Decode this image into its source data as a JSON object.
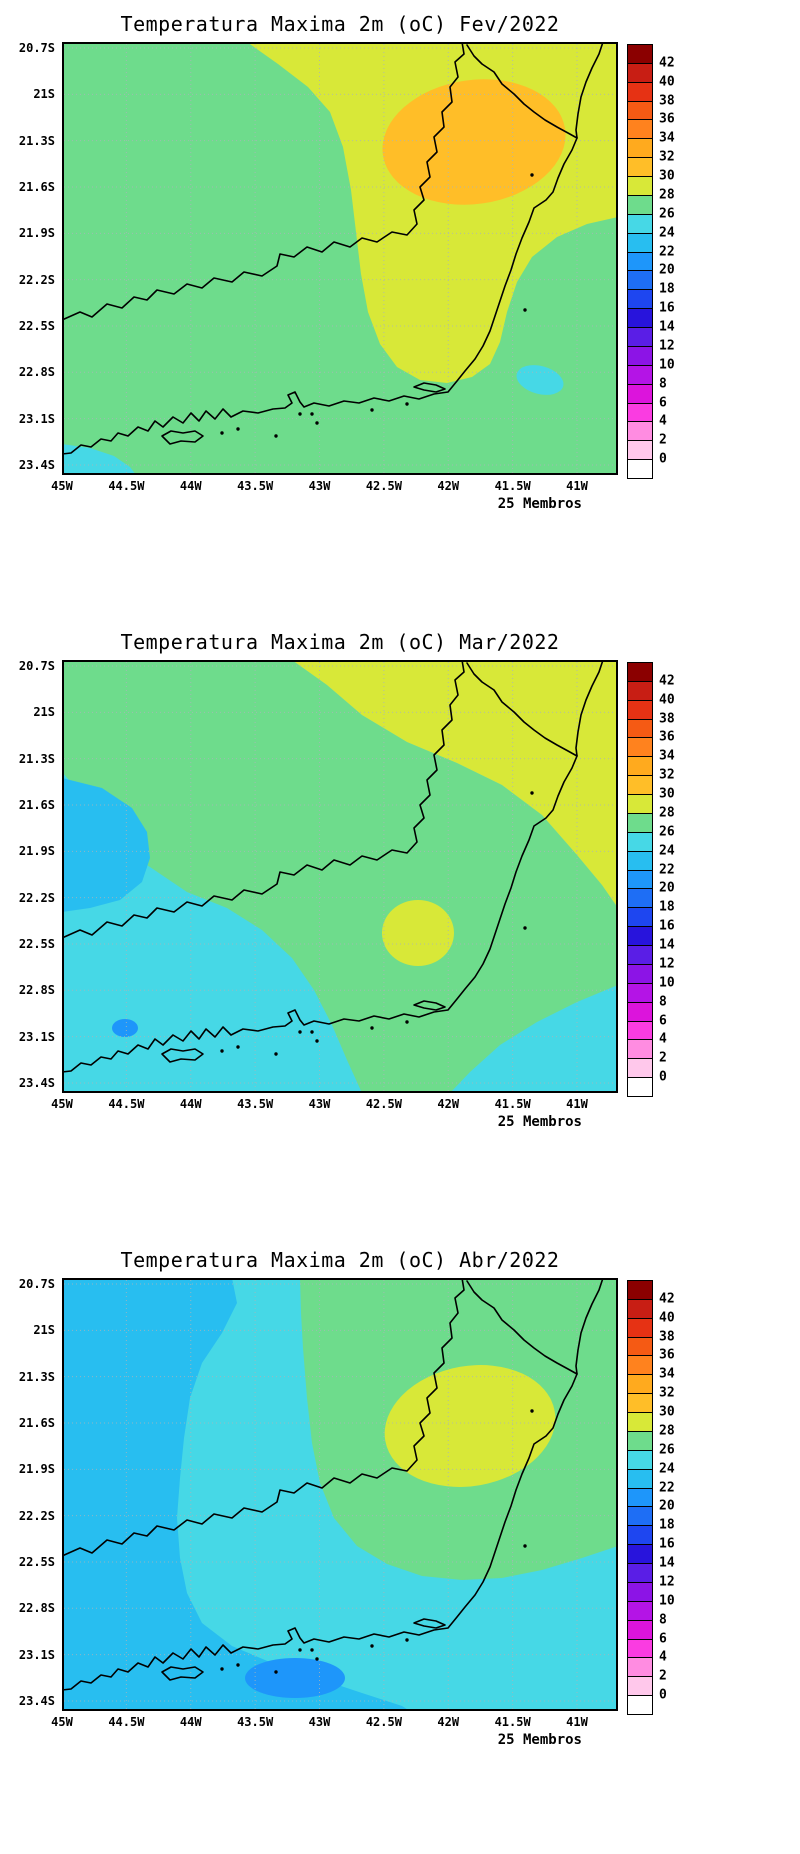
{
  "panels": [
    {
      "title": "Temperatura Maxima 2m (oC) Fev/2022",
      "members_label": "25 Membros"
    },
    {
      "title": "Temperatura Maxima 2m (oC) Mar/2022",
      "members_label": "25 Membros"
    },
    {
      "title": "Temperatura Maxima 2m (oC) Abr/2022",
      "members_label": "25 Membros"
    }
  ],
  "axes": {
    "lat_ticks": [
      "20.7S",
      "21S",
      "21.3S",
      "21.6S",
      "21.9S",
      "22.2S",
      "22.5S",
      "22.8S",
      "23.1S",
      "23.4S"
    ],
    "lon_ticks": [
      "45W",
      "44.5W",
      "44W",
      "43.5W",
      "43W",
      "42.5W",
      "42W",
      "41.5W",
      "41W"
    ]
  },
  "colorbar": {
    "tick_labels": [
      "42",
      "40",
      "38",
      "36",
      "34",
      "32",
      "30",
      "28",
      "26",
      "24",
      "22",
      "20",
      "18",
      "16",
      "14",
      "12",
      "10",
      "8",
      "6",
      "4",
      "2",
      "0"
    ],
    "cell_colors_top_to_bottom": [
      "#8b0000",
      "#c81e14",
      "#e63214",
      "#f55a14",
      "#ff821e",
      "#ffaa1e",
      "#ffbe28",
      "#d8e838",
      "#6edc8c",
      "#46d8e6",
      "#28bef0",
      "#1e96fa",
      "#1e6ef5",
      "#1e46f0",
      "#2814dc",
      "#5a1ee6",
      "#8c14e6",
      "#b414e6",
      "#dc14dc",
      "#fa3ce1",
      "#ff8ce1",
      "#ffc8eb",
      "#ffffff"
    ]
  },
  "map_bands": {
    "20-22": "#1e96fa",
    "22-24": "#28bef0",
    "24-26": "#46d8e6",
    "26-28": "#6edc8c",
    "28-30": "#d8e838",
    "30-32": "#ffbe28"
  },
  "chart_data": [
    {
      "type": "heatmap",
      "title": "Temperatura Maxima 2m (oC) Fev/2022",
      "annotation": "25 Membros",
      "units": "oC",
      "xlabel": "",
      "ylabel": "",
      "x_ticks": [
        "45W",
        "44.5W",
        "44W",
        "43.5W",
        "43W",
        "42.5W",
        "42W",
        "41.5W",
        "41W"
      ],
      "y_ticks": [
        "20.7S",
        "21S",
        "21.3S",
        "21.6S",
        "21.9S",
        "22.2S",
        "22.5S",
        "22.8S",
        "23.1S",
        "23.4S"
      ],
      "lon": [
        -45,
        -44.5,
        -44,
        -43.5,
        -43,
        -42.5,
        -42,
        -41.5,
        -41
      ],
      "lat": [
        -20.7,
        -21,
        -21.3,
        -21.6,
        -21.9,
        -22.2,
        -22.5,
        -22.8,
        -23.1,
        -23.4
      ],
      "contour_interval": 2,
      "scale_range": [
        0,
        42
      ],
      "legend_position": "right",
      "values_degC": [
        [
          27,
          27,
          27,
          29,
          29,
          29,
          29,
          29,
          29
        ],
        [
          27,
          27,
          27,
          27,
          29,
          29,
          31,
          31,
          29
        ],
        [
          27,
          27,
          27,
          27,
          29,
          31,
          31,
          31,
          29
        ],
        [
          27,
          27,
          27,
          27,
          29,
          29,
          31,
          29,
          29
        ],
        [
          27,
          27,
          27,
          27,
          29,
          29,
          29,
          29,
          27
        ],
        [
          27,
          27,
          27,
          27,
          29,
          29,
          29,
          27,
          27
        ],
        [
          27,
          27,
          27,
          27,
          27,
          29,
          27,
          27,
          27
        ],
        [
          27,
          27,
          27,
          27,
          27,
          29,
          27,
          25,
          27
        ],
        [
          27,
          27,
          27,
          27,
          27,
          27,
          27,
          27,
          27
        ],
        [
          25,
          27,
          27,
          27,
          27,
          27,
          27,
          27,
          27
        ]
      ]
    },
    {
      "type": "heatmap",
      "title": "Temperatura Maxima 2m (oC) Mar/2022",
      "annotation": "25 Membros",
      "units": "oC",
      "xlabel": "",
      "ylabel": "",
      "x_ticks": [
        "45W",
        "44.5W",
        "44W",
        "43.5W",
        "43W",
        "42.5W",
        "42W",
        "41.5W",
        "41W"
      ],
      "y_ticks": [
        "20.7S",
        "21S",
        "21.3S",
        "21.6S",
        "21.9S",
        "22.2S",
        "22.5S",
        "22.8S",
        "23.1S",
        "23.4S"
      ],
      "lon": [
        -45,
        -44.5,
        -44,
        -43.5,
        -43,
        -42.5,
        -42,
        -41.5,
        -41
      ],
      "lat": [
        -20.7,
        -21,
        -21.3,
        -21.6,
        -21.9,
        -22.2,
        -22.5,
        -22.8,
        -23.1,
        -23.4
      ],
      "contour_interval": 2,
      "scale_range": [
        0,
        42
      ],
      "legend_position": "right",
      "values_degC": [
        [
          27,
          27,
          27,
          27,
          29,
          29,
          29,
          29,
          29
        ],
        [
          27,
          27,
          27,
          27,
          27,
          29,
          29,
          29,
          29
        ],
        [
          27,
          27,
          27,
          27,
          27,
          27,
          29,
          29,
          29
        ],
        [
          23,
          23,
          27,
          27,
          27,
          27,
          27,
          29,
          29
        ],
        [
          23,
          23,
          25,
          27,
          27,
          27,
          27,
          27,
          29
        ],
        [
          23,
          25,
          25,
          27,
          27,
          27,
          27,
          27,
          27
        ],
        [
          25,
          25,
          25,
          25,
          27,
          27,
          29,
          27,
          25
        ],
        [
          25,
          25,
          25,
          25,
          27,
          29,
          27,
          25,
          25
        ],
        [
          25,
          21,
          25,
          25,
          27,
          27,
          27,
          25,
          25
        ],
        [
          25,
          25,
          25,
          25,
          27,
          27,
          27,
          25,
          25
        ]
      ]
    },
    {
      "type": "heatmap",
      "title": "Temperatura Maxima 2m (oC) Abr/2022",
      "annotation": "25 Membros",
      "units": "oC",
      "xlabel": "",
      "ylabel": "",
      "x_ticks": [
        "45W",
        "44.5W",
        "44W",
        "43.5W",
        "43W",
        "42.5W",
        "42W",
        "41.5W",
        "41W"
      ],
      "y_ticks": [
        "20.7S",
        "21S",
        "21.3S",
        "21.6S",
        "21.9S",
        "22.2S",
        "22.5S",
        "22.8S",
        "23.1S",
        "23.4S"
      ],
      "lon": [
        -45,
        -44.5,
        -44,
        -43.5,
        -43,
        -42.5,
        -42,
        -41.5,
        -41
      ],
      "lat": [
        -20.7,
        -21,
        -21.3,
        -21.6,
        -21.9,
        -22.2,
        -22.5,
        -22.8,
        -23.1,
        -23.4
      ],
      "contour_interval": 2,
      "scale_range": [
        0,
        42
      ],
      "legend_position": "right",
      "values_degC": [
        [
          23,
          23,
          23,
          25,
          27,
          27,
          27,
          27,
          27
        ],
        [
          23,
          23,
          23,
          25,
          27,
          27,
          27,
          27,
          27
        ],
        [
          23,
          23,
          23,
          25,
          27,
          27,
          29,
          29,
          27
        ],
        [
          23,
          23,
          25,
          25,
          27,
          29,
          29,
          29,
          27
        ],
        [
          23,
          23,
          25,
          25,
          27,
          27,
          29,
          29,
          27
        ],
        [
          23,
          23,
          25,
          25,
          25,
          27,
          27,
          27,
          27
        ],
        [
          23,
          23,
          25,
          25,
          25,
          27,
          27,
          27,
          25
        ],
        [
          23,
          23,
          23,
          25,
          25,
          25,
          25,
          25,
          25
        ],
        [
          23,
          23,
          23,
          23,
          25,
          25,
          25,
          25,
          25
        ],
        [
          23,
          23,
          23,
          23,
          21,
          25,
          25,
          25,
          25
        ]
      ]
    }
  ]
}
